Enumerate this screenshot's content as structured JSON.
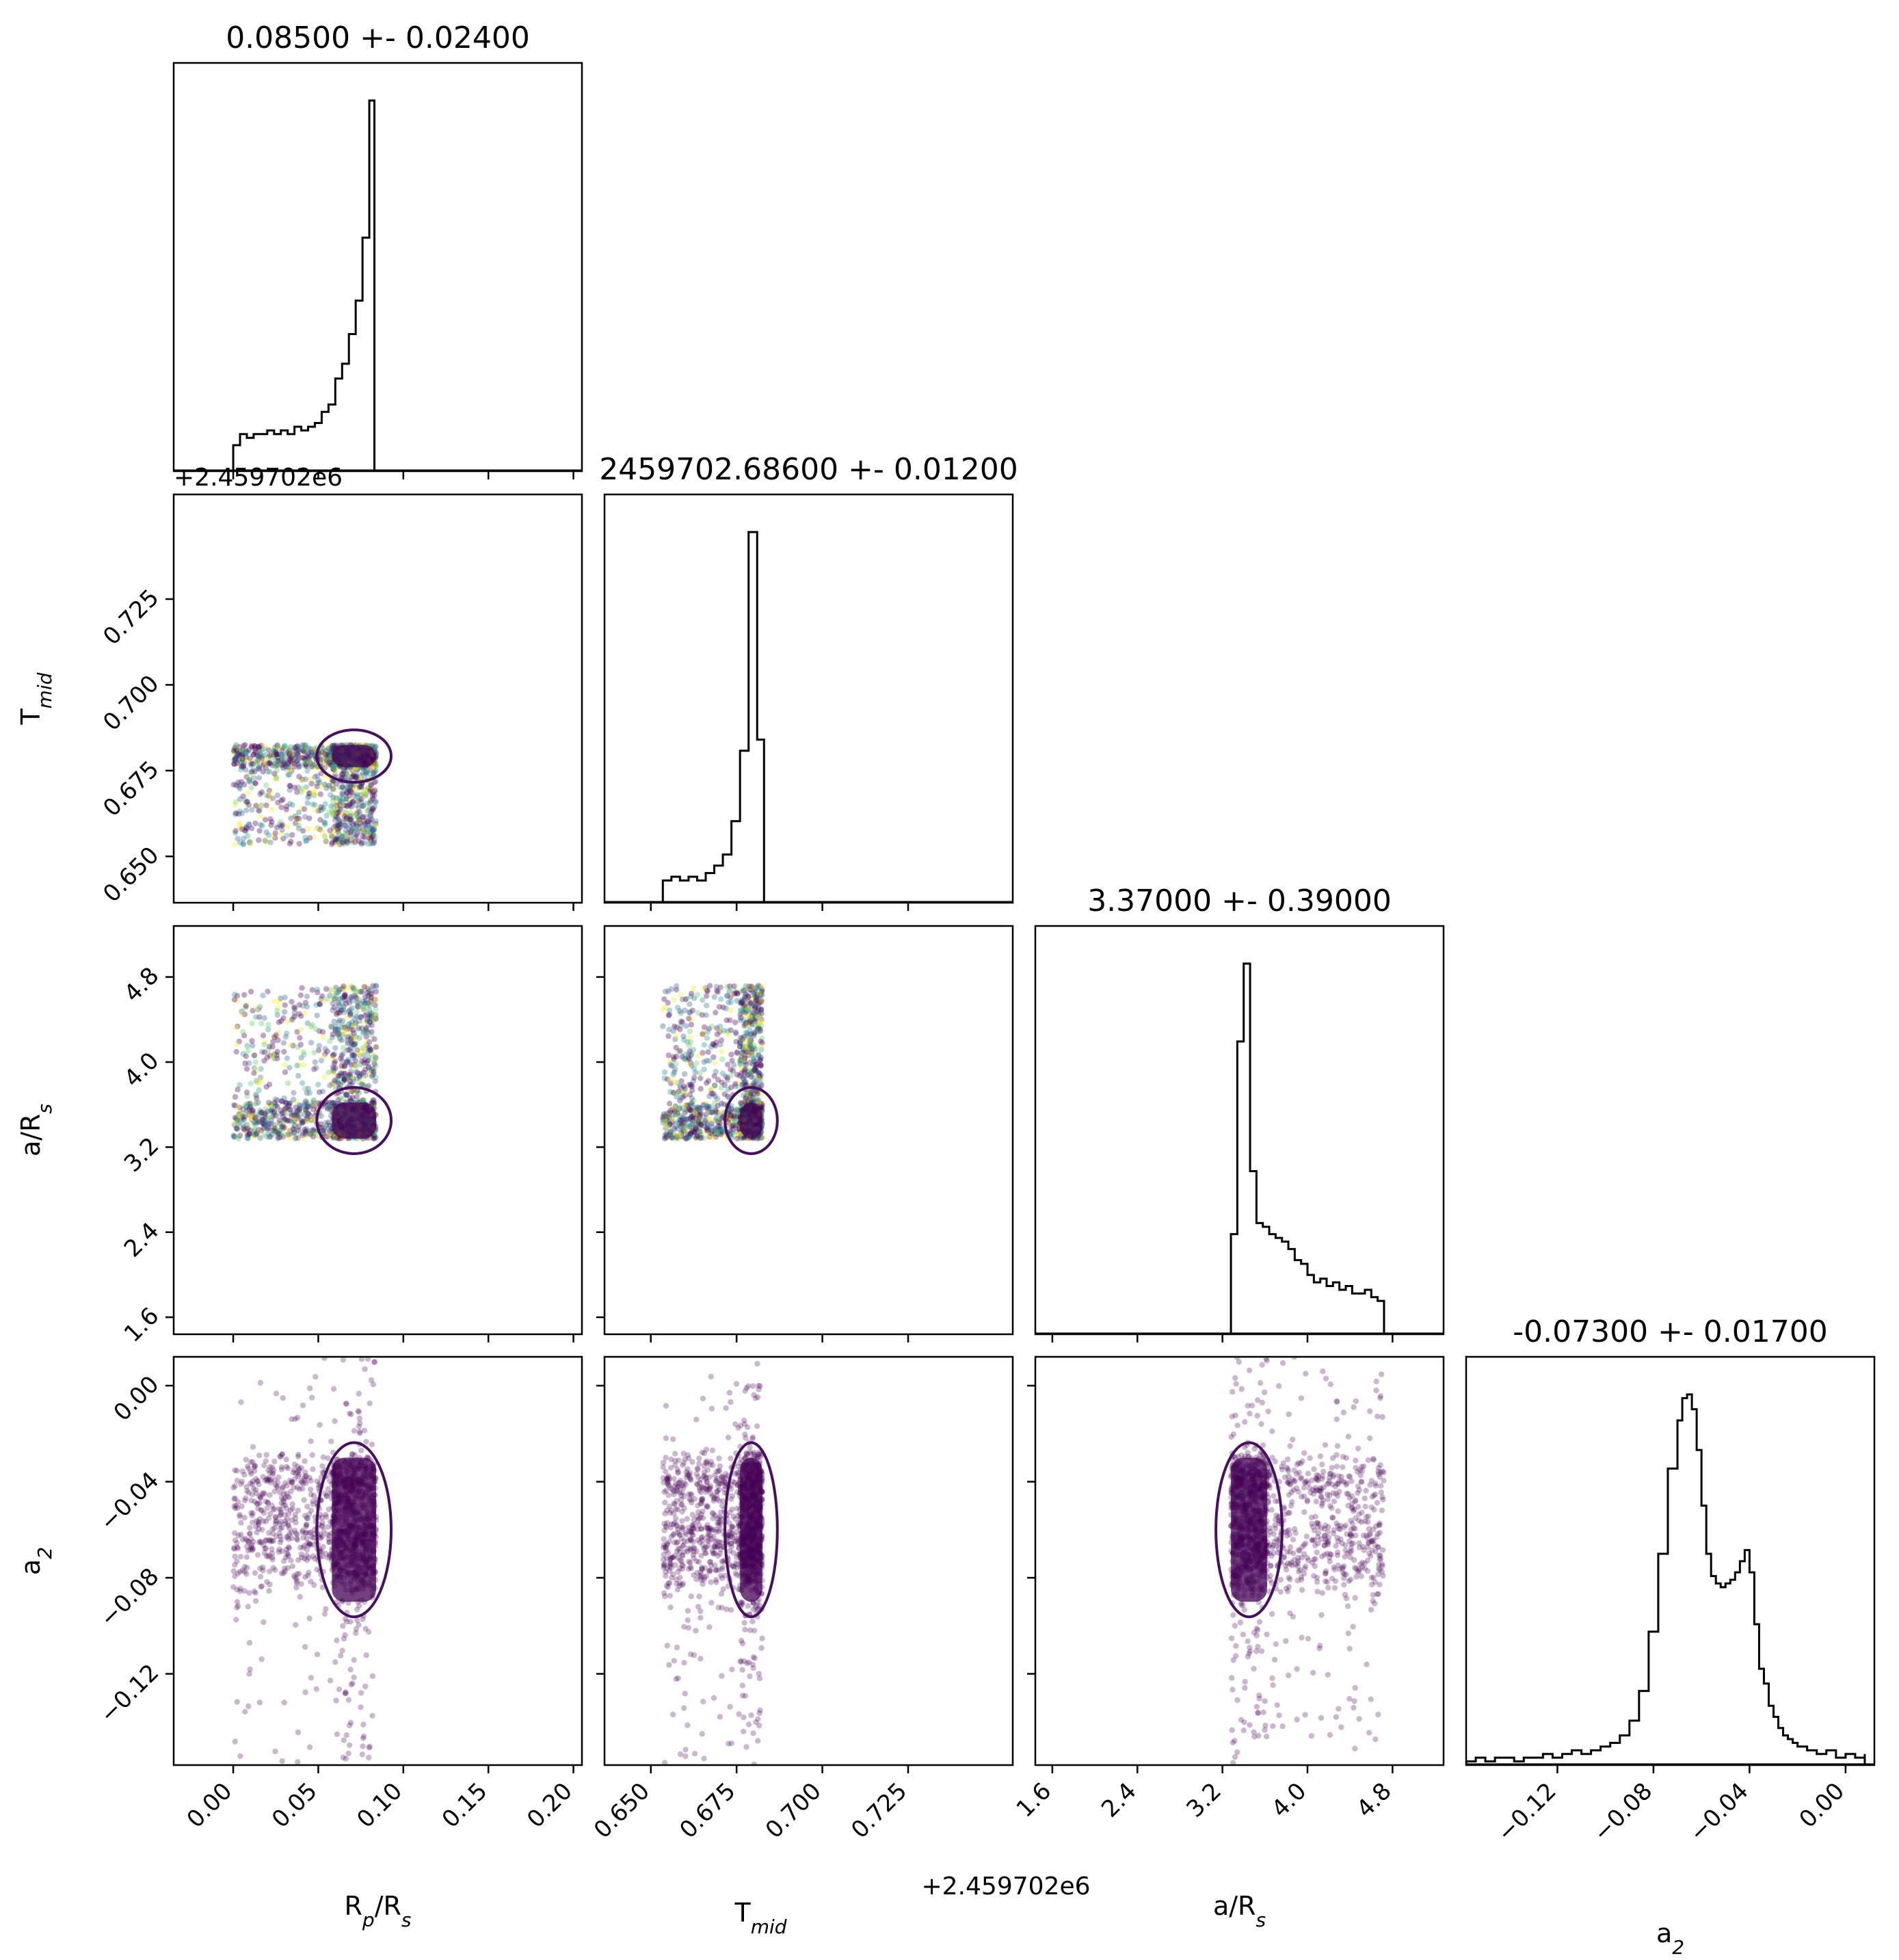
{
  "chart_data": {
    "type": "corner",
    "parameters": [
      {
        "key": "rp",
        "label_main": "R",
        "label_sub": "p",
        "label_main2": "/R",
        "label_sub2": "s",
        "range": [
          -0.035,
          0.205
        ],
        "ticks": [
          "0.00",
          "0.05",
          "0.10",
          "0.15",
          "0.20"
        ],
        "tick_values": [
          0.0,
          0.05,
          0.1,
          0.15,
          0.2
        ],
        "title": "0.08500 +- 0.02400"
      },
      {
        "key": "tmid",
        "label_main": "T",
        "label_sub": "mid",
        "label_main2": "",
        "label_sub2": "",
        "offset_text": "+2.459702e6",
        "range": [
          0.6365,
          0.7555
        ],
        "ticks": [
          "0.650",
          "0.675",
          "0.700",
          "0.725"
        ],
        "tick_values": [
          0.65,
          0.675,
          0.7,
          0.725
        ],
        "title": "2459702.68600 +- 0.01200"
      },
      {
        "key": "ars",
        "label_main": "a/R",
        "label_sub": "s",
        "label_main2": "",
        "label_sub2": "",
        "range": [
          1.44,
          5.28
        ],
        "ticks": [
          "1.6",
          "2.4",
          "3.2",
          "4.0",
          "4.8"
        ],
        "tick_values": [
          1.6,
          2.4,
          3.2,
          4.0,
          4.8
        ],
        "title": "3.37000 +- 0.39000"
      },
      {
        "key": "a2",
        "label_main": "a",
        "label_sub": "2",
        "label_main2": "",
        "label_sub2": "",
        "range": [
          -0.158,
          0.012
        ],
        "ticks": [
          "−0.12",
          "−0.08",
          "−0.04",
          "0.00"
        ],
        "tick_values": [
          -0.12,
          -0.08,
          -0.04,
          0.0
        ],
        "title": "-0.07300 +- 0.01700"
      }
    ],
    "histograms": {
      "rp": {
        "x": [
          0.0,
          0.004,
          0.008,
          0.012,
          0.016,
          0.02,
          0.024,
          0.028,
          0.032,
          0.036,
          0.04,
          0.044,
          0.048,
          0.052,
          0.056,
          0.06,
          0.064,
          0.068,
          0.072,
          0.076,
          0.08,
          0.083
        ],
        "counts": [
          0.07,
          0.1,
          0.09,
          0.1,
          0.1,
          0.11,
          0.1,
          0.11,
          0.1,
          0.12,
          0.11,
          0.12,
          0.13,
          0.16,
          0.18,
          0.25,
          0.29,
          0.37,
          0.46,
          0.63,
          1.0,
          0.0
        ]
      },
      "tmid": {
        "x": [
          0.6535,
          0.656,
          0.6585,
          0.661,
          0.6635,
          0.666,
          0.6685,
          0.671,
          0.6735,
          0.676,
          0.6785,
          0.681,
          0.683,
          0.684
        ],
        "counts": [
          0.06,
          0.07,
          0.06,
          0.07,
          0.06,
          0.08,
          0.1,
          0.13,
          0.22,
          0.41,
          1.0,
          0.44,
          0.0,
          0.0
        ]
      },
      "ars": {
        "x": [
          3.28,
          3.34,
          3.4,
          3.46,
          3.52,
          3.58,
          3.64,
          3.7,
          3.76,
          3.82,
          3.88,
          3.94,
          4.0,
          4.06,
          4.12,
          4.18,
          4.24,
          4.3,
          4.36,
          4.42,
          4.48,
          4.54,
          4.6,
          4.66,
          4.72
        ],
        "counts": [
          0.27,
          0.79,
          1.0,
          0.44,
          0.3,
          0.29,
          0.27,
          0.26,
          0.25,
          0.23,
          0.2,
          0.19,
          0.16,
          0.14,
          0.15,
          0.13,
          0.14,
          0.12,
          0.13,
          0.11,
          0.11,
          0.12,
          0.1,
          0.09,
          0.0
        ]
      },
      "a2": {
        "x": [
          -0.158,
          -0.154,
          -0.15,
          -0.146,
          -0.142,
          -0.138,
          -0.134,
          -0.13,
          -0.126,
          -0.122,
          -0.118,
          -0.114,
          -0.11,
          -0.106,
          -0.102,
          -0.098,
          -0.094,
          -0.09,
          -0.086,
          -0.082,
          -0.078,
          -0.074,
          -0.07,
          -0.068,
          -0.066,
          -0.064,
          -0.062,
          -0.06,
          -0.058,
          -0.056,
          -0.054,
          -0.052,
          -0.05,
          -0.048,
          -0.046,
          -0.044,
          -0.042,
          -0.04,
          -0.038,
          -0.036,
          -0.034,
          -0.032,
          -0.03,
          -0.028,
          -0.026,
          -0.024,
          -0.022,
          -0.02,
          -0.016,
          -0.012,
          -0.008,
          -0.004,
          0.0,
          0.004,
          0.008
        ],
        "counts": [
          0.01,
          0.02,
          0.01,
          0.02,
          0.02,
          0.01,
          0.02,
          0.02,
          0.03,
          0.02,
          0.03,
          0.04,
          0.03,
          0.04,
          0.05,
          0.06,
          0.08,
          0.12,
          0.2,
          0.36,
          0.57,
          0.8,
          0.93,
          0.99,
          1.0,
          0.96,
          0.85,
          0.7,
          0.57,
          0.51,
          0.49,
          0.48,
          0.49,
          0.5,
          0.52,
          0.55,
          0.58,
          0.52,
          0.38,
          0.26,
          0.22,
          0.16,
          0.13,
          0.1,
          0.08,
          0.07,
          0.06,
          0.05,
          0.04,
          0.03,
          0.04,
          0.02,
          0.03,
          0.02,
          0.03
        ]
      }
    },
    "scatter_regions": {
      "rp": [
        0.0,
        0.084
      ],
      "tmid": [
        0.6535,
        0.6825
      ],
      "ars": [
        3.28,
        4.72
      ],
      "a2": [
        -0.158,
        0.012
      ]
    },
    "dense_cores": {
      "rp": [
        0.058,
        0.084
      ],
      "tmid": [
        0.676,
        0.6825
      ],
      "ars": [
        3.28,
        3.62
      ],
      "a2": [
        -0.09,
        -0.03
      ]
    },
    "contour_color": "#45105e",
    "point_colors": [
      "#440154",
      "#3b528b",
      "#21918c",
      "#5ec962",
      "#fde725",
      "#440154",
      "#440154",
      "#31688e"
    ],
    "point_color_dense": "#440154"
  }
}
